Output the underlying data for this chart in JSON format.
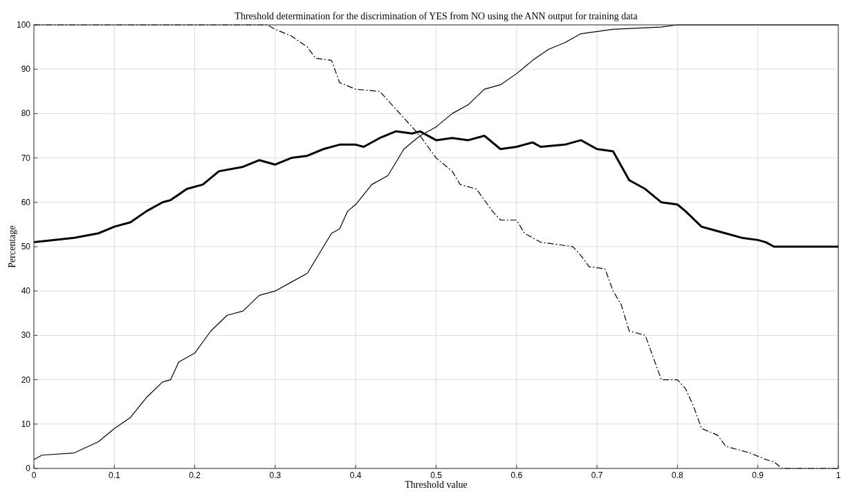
{
  "chart_data": {
    "type": "line",
    "title": "Threshold determination for the discrimination of YES from NO using the ANN output for training data",
    "xlabel": "Threshold value",
    "ylabel": "Percentage",
    "xlim": [
      0,
      1
    ],
    "xticks": [
      0,
      0.1,
      0.2,
      0.3,
      0.4,
      0.5,
      0.6,
      0.7,
      0.8,
      0.9,
      1
    ],
    "ylim": [
      0,
      100
    ],
    "yticks": [
      0,
      10,
      20,
      30,
      40,
      50,
      60,
      70,
      80,
      90,
      100
    ],
    "grid": true,
    "series": [
      {
        "color": "#000000",
        "line_style": "solid",
        "x": [
          0,
          0.01,
          0.05,
          0.08,
          0.1,
          0.12,
          0.14,
          0.16,
          0.17,
          0.18,
          0.2,
          0.22,
          0.24,
          0.26,
          0.28,
          0.3,
          0.32,
          0.34,
          0.36,
          0.37,
          0.38,
          0.39,
          0.4,
          0.42,
          0.44,
          0.46,
          0.48,
          0.5,
          0.52,
          0.54,
          0.56,
          0.58,
          0.6,
          0.62,
          0.64,
          0.66,
          0.68,
          0.7,
          0.72,
          0.78,
          0.8,
          1
        ],
        "values": [
          2,
          3,
          3.5,
          6,
          9,
          11.5,
          16,
          19.5,
          20,
          24,
          26,
          31,
          34.5,
          35.5,
          39,
          40,
          42,
          44,
          50,
          53,
          54,
          58,
          59.5,
          64,
          66,
          72,
          75,
          77,
          80,
          82,
          85.5,
          86.5,
          89,
          92,
          94.5,
          96,
          98,
          98.5,
          99,
          99.5,
          100,
          100
        ]
      },
      {
        "color": "#000000",
        "line_style": "solid",
        "x": [
          0,
          0.05,
          0.08,
          0.1,
          0.12,
          0.14,
          0.16,
          0.17,
          0.19,
          0.21,
          0.23,
          0.26,
          0.28,
          0.3,
          0.32,
          0.34,
          0.36,
          0.38,
          0.4,
          0.41,
          0.43,
          0.45,
          0.47,
          0.48,
          0.5,
          0.52,
          0.54,
          0.56,
          0.58,
          0.6,
          0.62,
          0.63,
          0.66,
          0.68,
          0.7,
          0.72,
          0.74,
          0.76,
          0.78,
          0.8,
          0.81,
          0.83,
          0.86,
          0.88,
          0.9,
          0.91,
          0.92,
          1
        ],
        "values": [
          51,
          52,
          53,
          54.5,
          55.5,
          58,
          60,
          60.5,
          63,
          64,
          67,
          68,
          69.5,
          68.5,
          70,
          70.5,
          72,
          73,
          73,
          72.5,
          74.5,
          76,
          75.5,
          76,
          74,
          74.5,
          74,
          75,
          72,
          72.5,
          73.5,
          72.5,
          73,
          74,
          72,
          71.5,
          65,
          63,
          60,
          59.5,
          58,
          54.5,
          53,
          52,
          51.5,
          51,
          50,
          50
        ]
      },
      {
        "color": "#000000",
        "line_style": "dashed",
        "x": [
          0,
          0.29,
          0.3,
          0.32,
          0.34,
          0.35,
          0.37,
          0.38,
          0.4,
          0.43,
          0.44,
          0.46,
          0.48,
          0.5,
          0.52,
          0.53,
          0.55,
          0.57,
          0.58,
          0.6,
          0.61,
          0.62,
          0.63,
          0.65,
          0.67,
          0.68,
          0.69,
          0.71,
          0.72,
          0.73,
          0.74,
          0.76,
          0.77,
          0.78,
          0.8,
          0.81,
          0.82,
          0.83,
          0.85,
          0.86,
          0.88,
          0.89,
          0.91,
          0.92,
          0.93,
          1
        ],
        "values": [
          100,
          100,
          99,
          97.5,
          95,
          92.5,
          92,
          87,
          85.5,
          85,
          83,
          79,
          75,
          70,
          67,
          64,
          63,
          58,
          56,
          56,
          53,
          52,
          51,
          50.5,
          50,
          48,
          45.5,
          45,
          40,
          37,
          31,
          30,
          25,
          20,
          20,
          18,
          14,
          9,
          7.5,
          5,
          4,
          3.5,
          2,
          1.5,
          0,
          0
        ]
      }
    ]
  }
}
